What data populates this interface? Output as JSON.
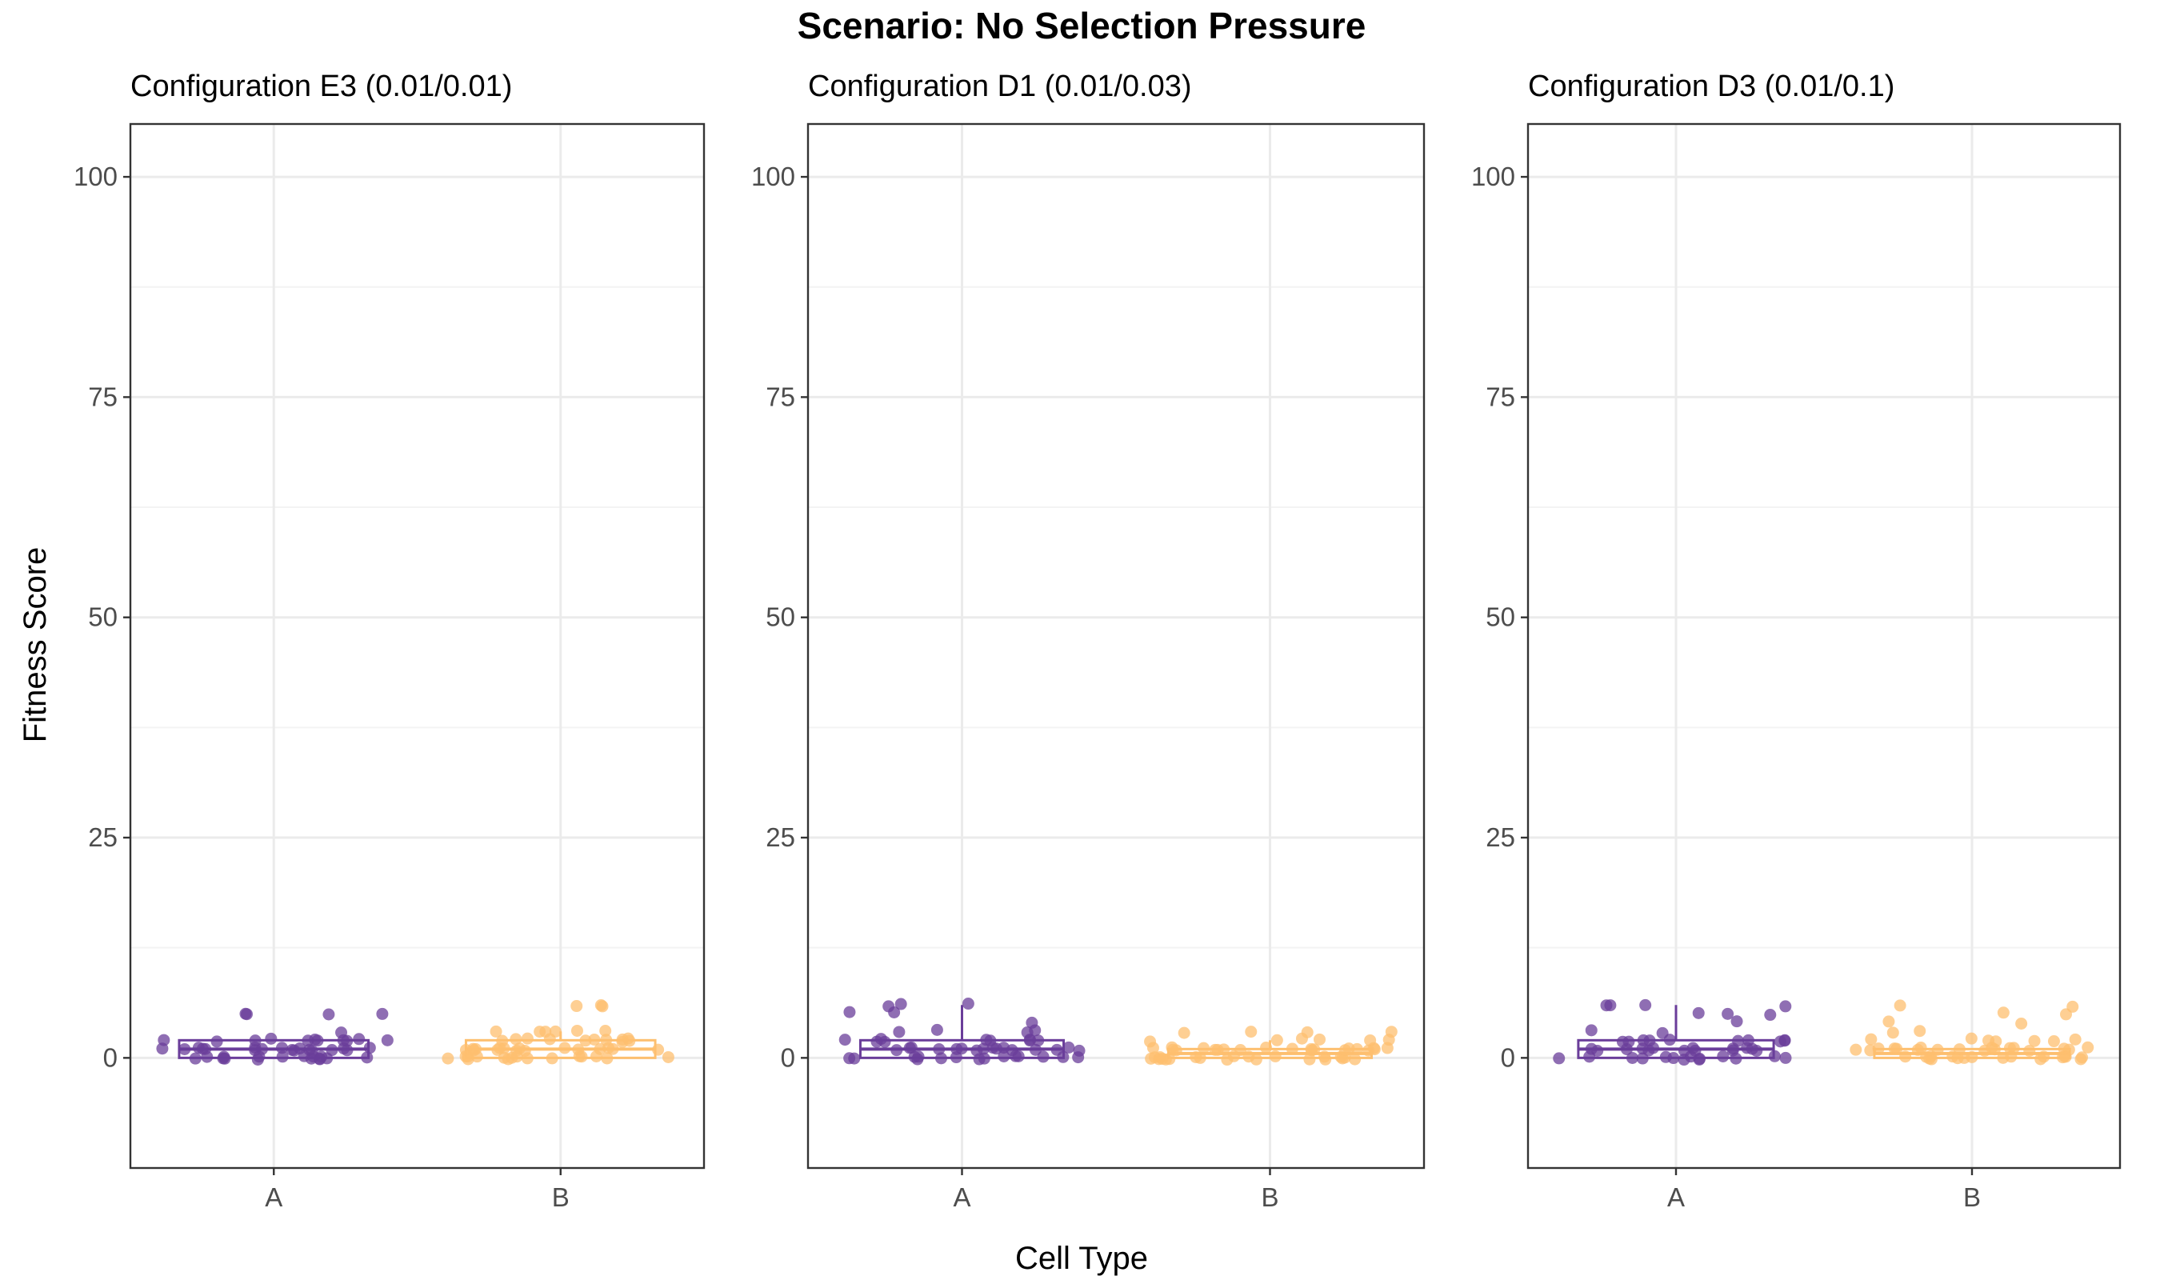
{
  "chart_data": {
    "type": "scatter",
    "title": "Scenario: No Selection Pressure",
    "xlabel": "Cell Type",
    "ylabel": "Fitness Score",
    "ylim": [
      -12.5,
      106
    ],
    "yticks": [
      0,
      25,
      50,
      75,
      100
    ],
    "grid": true,
    "legend": "none",
    "categories": [
      "A",
      "B"
    ],
    "colors": {
      "A": "#6a3d9a",
      "B": "#fdbf6f"
    },
    "panels": [
      {
        "title": "Configuration E3 (0.01/0.01)",
        "series": [
          {
            "category": "A",
            "box": {
              "q1": 0,
              "median": 1,
              "q3": 2,
              "whisker_low": 0,
              "whisker_high": 2
            },
            "points": [
              1,
              0,
              2,
              1,
              0,
              5,
              3,
              1,
              0,
              2,
              1,
              0,
              0,
              1,
              2,
              1,
              0,
              5,
              5,
              1,
              0,
              2,
              1,
              0,
              1,
              2,
              0,
              5,
              1,
              0,
              2,
              1,
              0,
              1,
              2,
              0,
              1,
              2,
              1,
              0,
              2,
              1,
              0,
              1,
              2,
              1,
              0,
              2,
              1,
              0
            ]
          },
          {
            "category": "B",
            "box": {
              "q1": 0,
              "median": 1,
              "q3": 2,
              "whisker_low": 0,
              "whisker_high": 3
            },
            "points": [
              3,
              0,
              1,
              2,
              0,
              1,
              3,
              0,
              1,
              2,
              0,
              1,
              0,
              2,
              1,
              0,
              6,
              6,
              6,
              1,
              0,
              2,
              1,
              0,
              1,
              2,
              3,
              0,
              1,
              2,
              0,
              1,
              2,
              0,
              3,
              1,
              0,
              2,
              1,
              0,
              1,
              2,
              0,
              1,
              3,
              0,
              2,
              1,
              0,
              2,
              1,
              3
            ]
          }
        ]
      },
      {
        "title": "Configuration D1 (0.01/0.03)",
        "series": [
          {
            "category": "A",
            "box": {
              "q1": 0,
              "median": 1,
              "q3": 2,
              "whisker_low": 0,
              "whisker_high": 6
            },
            "points": [
              0,
              1,
              2,
              1,
              0,
              3,
              1,
              0,
              2,
              1,
              0,
              4,
              1,
              0,
              2,
              1,
              0,
              2,
              1,
              0,
              6,
              6,
              5,
              1,
              0,
              2,
              1,
              0,
              3,
              2,
              3,
              1,
              0,
              1,
              2,
              6,
              1,
              0,
              2,
              1,
              0,
              1,
              2,
              5,
              3,
              1,
              0,
              1,
              0,
              0
            ]
          },
          {
            "category": "B",
            "box": {
              "q1": 0,
              "median": 0.5,
              "q3": 1,
              "whisker_low": 0,
              "whisker_high": 2
            },
            "points": [
              2,
              2,
              1,
              0,
              1,
              0,
              1,
              0,
              1,
              0,
              2,
              1,
              0,
              1,
              2,
              0,
              1,
              3,
              0,
              1,
              2,
              0,
              1,
              0,
              1,
              0,
              3,
              3,
              1,
              0,
              1,
              0,
              1,
              0,
              1,
              0,
              1,
              2,
              0,
              1,
              0,
              1,
              0,
              1,
              3,
              0,
              1,
              0,
              1,
              0,
              1,
              0
            ]
          }
        ]
      },
      {
        "title": "Configuration D3 (0.01/0.1)",
        "series": [
          {
            "category": "A",
            "box": {
              "q1": 0,
              "median": 1,
              "q3": 2,
              "whisker_low": 0,
              "whisker_high": 6
            },
            "points": [
              2,
              1,
              0,
              2,
              1,
              0,
              4,
              2,
              1,
              0,
              2,
              1,
              0,
              2,
              1,
              0,
              6,
              5,
              1,
              0,
              2,
              3,
              1,
              0,
              5,
              2,
              6,
              6,
              5,
              1,
              0,
              2,
              1,
              0,
              3,
              2,
              1,
              0,
              1,
              2,
              0,
              1,
              6,
              1,
              0,
              1,
              0,
              0
            ]
          },
          {
            "category": "B",
            "box": {
              "q1": 0,
              "median": 0.5,
              "q3": 1,
              "whisker_low": 0,
              "whisker_high": 1
            },
            "points": [
              1,
              0,
              1,
              0,
              2,
              1,
              0,
              1,
              2,
              0,
              1,
              0,
              2,
              1,
              0,
              5,
              4,
              1,
              0,
              2,
              1,
              0,
              1,
              0,
              1,
              0,
              2,
              3,
              6,
              5,
              4,
              3,
              1,
              0,
              1,
              2,
              0,
              1,
              0,
              1,
              2,
              0,
              1,
              0,
              1,
              6,
              0,
              1,
              0,
              1,
              0
            ]
          }
        ]
      }
    ]
  }
}
